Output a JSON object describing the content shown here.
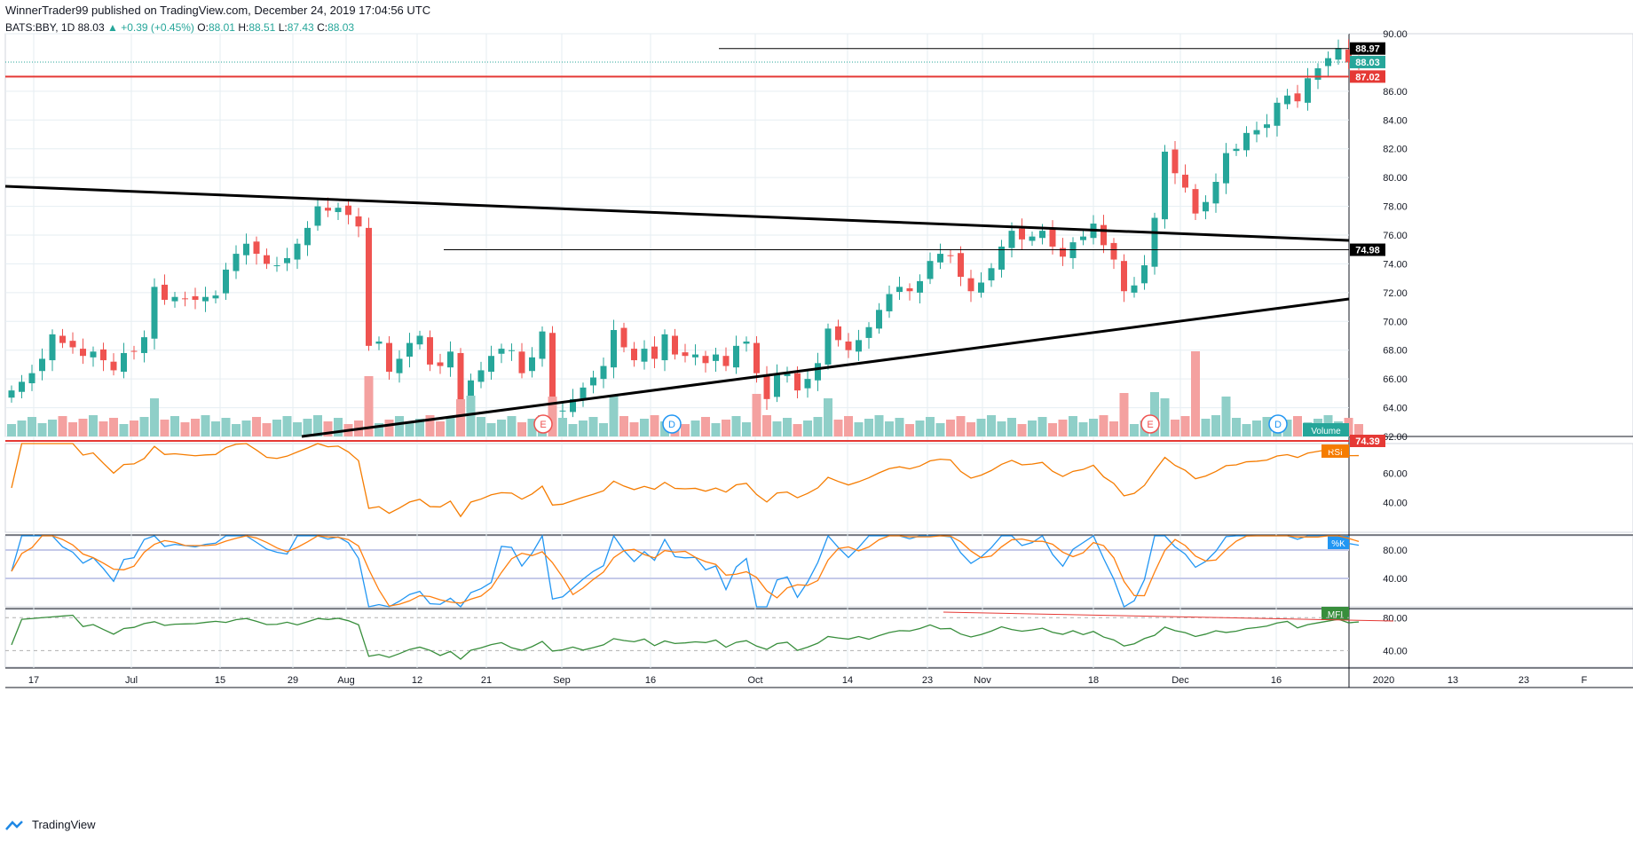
{
  "header": {
    "publisher": "WinnerTrader99 published on TradingView.com, December 24, 2019 17:04:56 UTC",
    "symbol": "BATS:BBY, 1D",
    "last": "88.03",
    "change": "▲ +0.39 (+0.45%)",
    "o_label": "O:",
    "o": "88.01",
    "h_label": "H:",
    "h": "88.51",
    "l_label": "L:",
    "l": "87.43",
    "c_label": "C:",
    "c": "88.03"
  },
  "footer": {
    "brand": "TradingView"
  },
  "colors": {
    "up": "#26a69a",
    "down": "#ef5350",
    "rsi": "#f57c00",
    "k": "#2196f3",
    "d": "#ff7f0e",
    "mfi": "#388e3c",
    "red_line": "#e53935"
  },
  "chart_data": [
    {
      "type": "candlestick",
      "name": "price",
      "symbol": "BATS:BBY",
      "interval": "1D",
      "ylim": [
        62,
        90
      ],
      "yticks": [
        "62.00",
        "64.00",
        "66.00",
        "68.00",
        "70.00",
        "72.00",
        "74.00",
        "76.00",
        "78.00",
        "80.00",
        "82.00",
        "84.00",
        "86.00",
        "90.00"
      ],
      "xticks": [
        "17",
        "Jul",
        "15",
        "29",
        "Aug",
        "12",
        "21",
        "Sep",
        "16",
        "Oct",
        "14",
        "23",
        "Nov",
        "18",
        "Dec",
        "16",
        "2020",
        "13",
        "23",
        "F"
      ],
      "closes": [
        65.2,
        65.8,
        66.4,
        67.4,
        69.1,
        68.5,
        68.2,
        67.6,
        67.9,
        67.3,
        66.6,
        67.8,
        67.9,
        68.9,
        72.4,
        71.5,
        71.7,
        71.6,
        71.5,
        71.7,
        71.8,
        73.6,
        74.7,
        75.4,
        74.7,
        74.0,
        73.9,
        74.4,
        75.4,
        76.5,
        78.0,
        77.7,
        77.9,
        77.4,
        76.6,
        68.3,
        68.6,
        66.5,
        67.4,
        68.5,
        69.0,
        67.0,
        66.9,
        67.9,
        62.9,
        65.9,
        66.6,
        67.6,
        68.1,
        68.0,
        66.4,
        67.5,
        69.3,
        63.6,
        63.8,
        64.6,
        65.4,
        66.1,
        66.9,
        69.4,
        68.2,
        67.3,
        68.1,
        67.4,
        69.1,
        67.7,
        67.6,
        67.7,
        67.1,
        67.7,
        66.9,
        68.3,
        68.6,
        66.4,
        64.6,
        66.3,
        66.5,
        65.2,
        66.0,
        67.1,
        69.5,
        68.7,
        68.0,
        68.7,
        69.6,
        70.8,
        71.9,
        72.4,
        72.1,
        72.8,
        74.2,
        74.7,
        74.6,
        73.1,
        72.1,
        72.7,
        73.7,
        75.2,
        76.3,
        75.7,
        75.9,
        76.3,
        75.2,
        74.5,
        75.5,
        75.9,
        76.8,
        75.3,
        74.3,
        72.1,
        72.5,
        73.9,
        77.2,
        81.8,
        80.3,
        79.3,
        77.5,
        78.3,
        79.7,
        81.7,
        82.0,
        83.1,
        83.3,
        83.7,
        85.2,
        85.7,
        85.3,
        86.9,
        87.6,
        88.3,
        89.0,
        88.0,
        88.03
      ],
      "annotations": [
        "E",
        "D",
        "E",
        "D"
      ],
      "hlines": [
        88.97,
        87.02,
        74.98
      ],
      "price_labels": [
        "88.97",
        "88.03",
        "87.02",
        "74.98",
        "74.39"
      ]
    },
    {
      "type": "bar",
      "name": "Volume",
      "legend": "Volume"
    },
    {
      "type": "line",
      "name": "RSI",
      "legend": "RSI",
      "yticks": [
        "40.00",
        "60.00"
      ]
    },
    {
      "type": "line",
      "name": "%K",
      "legend": "%K",
      "yticks": [
        "40.00",
        "80.00"
      ]
    },
    {
      "type": "line",
      "name": "MFI",
      "legend": "MFI",
      "yticks": [
        "40.00",
        "80.00"
      ]
    }
  ]
}
